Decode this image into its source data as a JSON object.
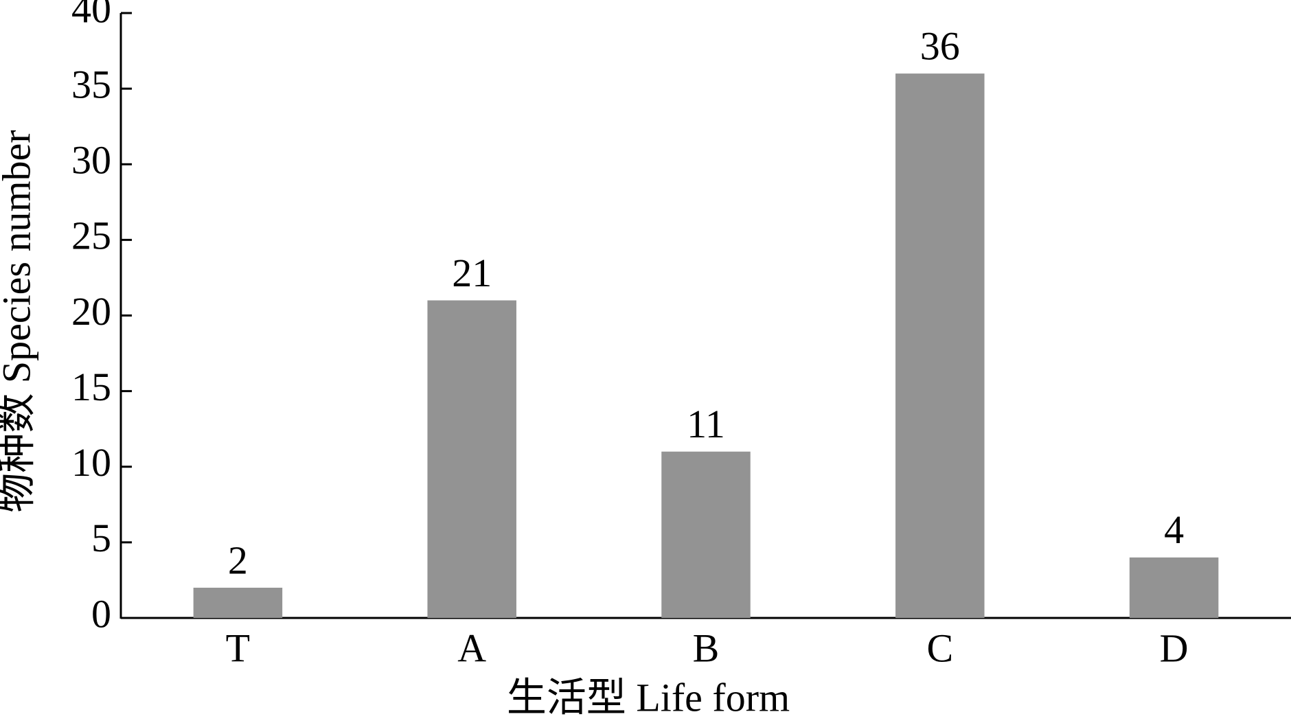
{
  "chart_data": {
    "type": "bar",
    "x_label": "生活型 Life form",
    "y_label": "物种数 Species number",
    "categories": [
      "T",
      "A",
      "B",
      "C",
      "D"
    ],
    "values": [
      2,
      21,
      11,
      36,
      4
    ],
    "color": "#939393",
    "ylim": [
      0,
      40
    ],
    "yticks": [
      0,
      5,
      10,
      15,
      20,
      25,
      30,
      35,
      40
    ],
    "grid": false
  }
}
